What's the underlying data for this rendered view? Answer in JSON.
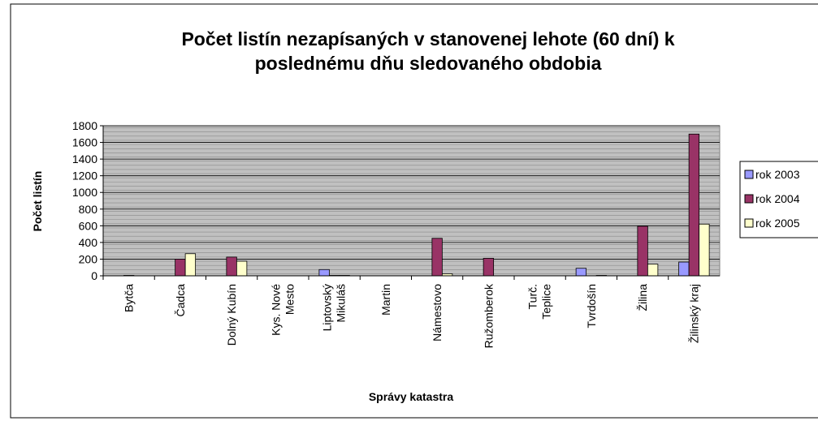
{
  "chart_data": {
    "type": "bar",
    "title": "Počet listín nezapísaných v stanovenej lehote (60 dní) k\nposlednému dňu sledovaného obdobia",
    "x_label": "Správy katastra",
    "y_label": "Počet listín",
    "categories": [
      "Bytča",
      "Čadca",
      "Dolný Kubín",
      "Kys. Nové\nMesto",
      "Liptovský\nMikuláš",
      "Martin",
      "Námestovo",
      "Ružomberok",
      "Turč.\nTeplice",
      "Tvrdošín",
      "Žilina",
      "Žilinský kraj"
    ],
    "series": [
      {
        "name": "rok 2003",
        "color": "#9999ff",
        "values": [
          0,
          0,
          0,
          0,
          75,
          0,
          0,
          0,
          0,
          90,
          0,
          165
        ]
      },
      {
        "name": "rok 2004",
        "color": "#993366",
        "values": [
          5,
          200,
          225,
          0,
          5,
          0,
          450,
          210,
          0,
          0,
          595,
          1700
        ]
      },
      {
        "name": "rok 2005",
        "color": "#ffffcc",
        "values": [
          0,
          265,
          175,
          0,
          5,
          0,
          25,
          0,
          0,
          5,
          140,
          620
        ]
      }
    ],
    "ylim": [
      0,
      1800
    ],
    "yticks": [
      0,
      200,
      400,
      600,
      800,
      1000,
      1200,
      1400,
      1600,
      1800
    ],
    "grid": true,
    "legend": "right"
  }
}
